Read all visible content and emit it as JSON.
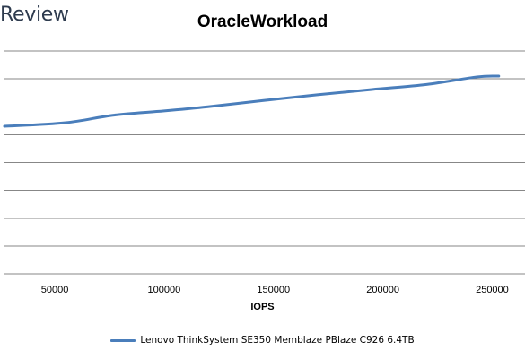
{
  "brand": {
    "text": "Review"
  },
  "chart_data": {
    "type": "line",
    "title": "OracleWorkload",
    "xlabel": "IOPS",
    "ylabel": "",
    "xlim": [
      27000,
      265000
    ],
    "ylim": [
      0,
      8
    ],
    "x_ticks": [
      50000,
      100000,
      150000,
      200000,
      250000
    ],
    "grid": true,
    "legend_position": "bottom",
    "colors": {
      "series": "#4a7ebb",
      "grid": "#878787",
      "text": "#000000",
      "brand": "#2e3b4e"
    },
    "series": [
      {
        "name": "Lenovo ThinkSystem SE350 Memblaze PBlaze C926 6.4TB",
        "x": [
          27000,
          55000,
          77000,
          100000,
          120000,
          145000,
          170000,
          195000,
          220000,
          243000,
          253000
        ],
        "y": [
          5.3,
          5.43,
          5.7,
          5.85,
          6.0,
          6.22,
          6.43,
          6.62,
          6.8,
          7.07,
          7.1
        ]
      }
    ]
  }
}
